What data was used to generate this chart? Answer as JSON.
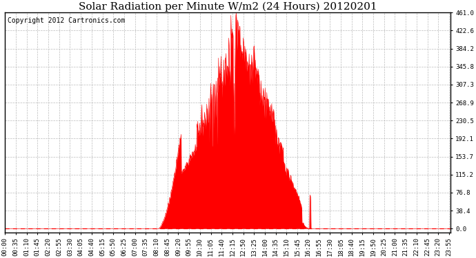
{
  "title": "Solar Radiation per Minute W/m2 (24 Hours) 20120201",
  "copyright_text": "Copyright 2012 Cartronics.com",
  "y_max": 461.0,
  "y_ticks": [
    0.0,
    38.4,
    76.8,
    115.2,
    153.7,
    192.1,
    230.5,
    268.9,
    307.3,
    345.8,
    384.2,
    422.6,
    461.0
  ],
  "fill_color": "#FF0000",
  "line_color": "#FF0000",
  "bg_color": "#FFFFFF",
  "grid_color": "#BBBBBB",
  "dashed_line_color": "#FF0000",
  "title_fontsize": 11,
  "tick_fontsize": 6.5,
  "copyright_fontsize": 7,
  "sunrise_minute": 497,
  "sunset_minute": 982,
  "peak_minute": 745,
  "peak_value": 460
}
